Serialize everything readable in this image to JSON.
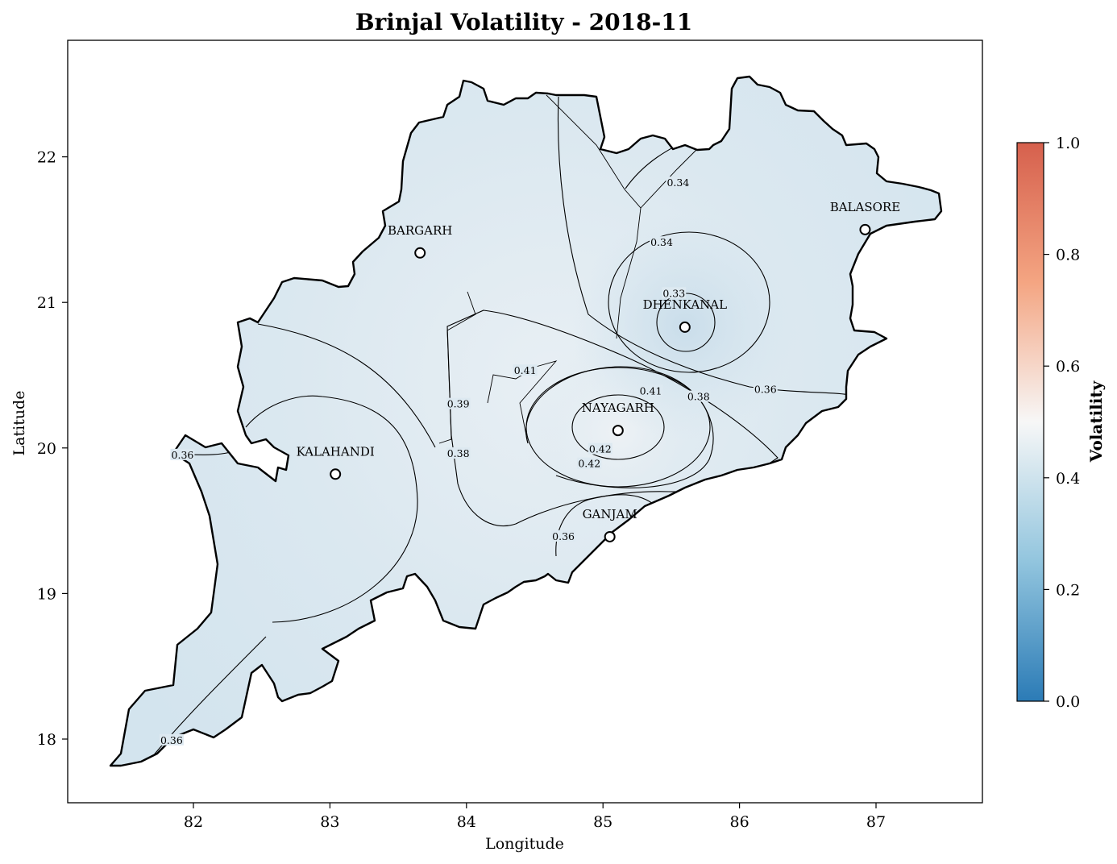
{
  "title": "Brinjal Volatility - 2018-11",
  "xlabel": "Longitude",
  "ylabel": "Latitude",
  "x_ticks": [
    "82",
    "83",
    "84",
    "85",
    "86",
    "87"
  ],
  "y_ticks": [
    "18",
    "19",
    "20",
    "21",
    "22"
  ],
  "colorbar": {
    "label": "Volatility",
    "ticks": [
      "0.0",
      "0.2",
      "0.4",
      "0.6",
      "0.8",
      "1.0"
    ],
    "colors": [
      "#2b7bb6",
      "#92c5de",
      "#f7f7f7",
      "#f4a582",
      "#d6604d"
    ]
  },
  "districts": [
    {
      "name": "BARGARH",
      "lon": 83.66,
      "lat": 21.34
    },
    {
      "name": "BALASORE",
      "lon": 86.92,
      "lat": 21.5
    },
    {
      "name": "DHENKANAL",
      "lon": 85.6,
      "lat": 20.83
    },
    {
      "name": "NAYAGARH",
      "lon": 85.11,
      "lat": 20.12
    },
    {
      "name": "KALAHANDI",
      "lon": 83.04,
      "lat": 19.82
    },
    {
      "name": "GANJAM",
      "lon": 85.05,
      "lat": 19.39
    }
  ],
  "contour_labels": [
    {
      "text": "0.34",
      "lon": 85.55,
      "lat": 21.82
    },
    {
      "text": "0.34",
      "lon": 85.43,
      "lat": 21.41
    },
    {
      "text": "0.33",
      "lon": 85.52,
      "lat": 21.06
    },
    {
      "text": "0.36",
      "lon": 86.19,
      "lat": 20.4
    },
    {
      "text": "0.38",
      "lon": 85.7,
      "lat": 20.35
    },
    {
      "text": "0.41",
      "lon": 85.35,
      "lat": 20.39
    },
    {
      "text": "0.41",
      "lon": 84.43,
      "lat": 20.53
    },
    {
      "text": "0.42",
      "lon": 84.98,
      "lat": 19.99
    },
    {
      "text": "0.42",
      "lon": 84.9,
      "lat": 19.89
    },
    {
      "text": "0.39",
      "lon": 83.94,
      "lat": 20.3
    },
    {
      "text": "0.38",
      "lon": 83.94,
      "lat": 19.96
    },
    {
      "text": "0.36",
      "lon": 81.92,
      "lat": 19.95
    },
    {
      "text": "0.36",
      "lon": 84.71,
      "lat": 19.39
    },
    {
      "text": "0.36",
      "lon": 81.84,
      "lat": 17.99
    }
  ]
}
